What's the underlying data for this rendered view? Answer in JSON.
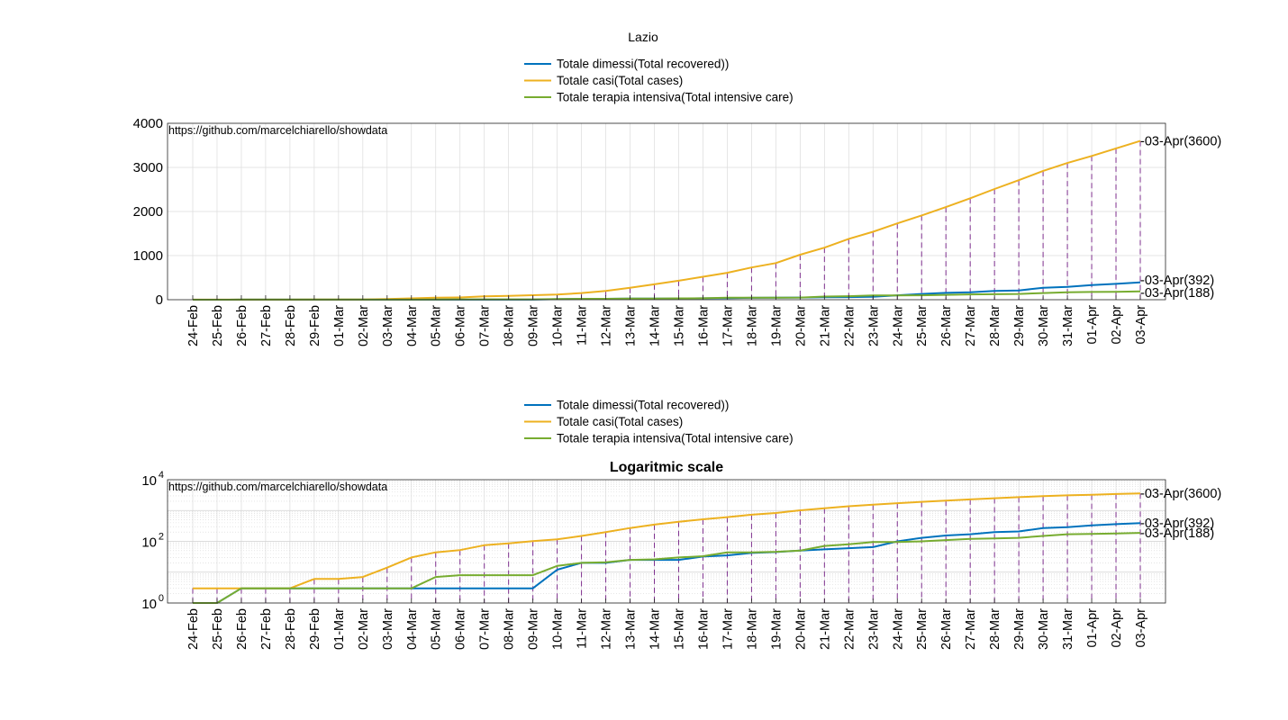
{
  "figure_title": "Lazio",
  "colors": {
    "recovered": "#0072BD",
    "cases": "#EDB120",
    "icu": "#77AC30",
    "drop_lines": "#7E2F8E"
  },
  "chart_data": [
    {
      "type": "line",
      "title": "",
      "watermark": "https://github.com/marcelchiarello/showdata",
      "x": [
        "24-Feb",
        "25-Feb",
        "26-Feb",
        "27-Feb",
        "28-Feb",
        "29-Feb",
        "01-Mar",
        "02-Mar",
        "03-Mar",
        "04-Mar",
        "05-Mar",
        "06-Mar",
        "07-Mar",
        "08-Mar",
        "09-Mar",
        "10-Mar",
        "11-Mar",
        "12-Mar",
        "13-Mar",
        "14-Mar",
        "15-Mar",
        "16-Mar",
        "17-Mar",
        "18-Mar",
        "19-Mar",
        "20-Mar",
        "21-Mar",
        "22-Mar",
        "23-Mar",
        "24-Mar",
        "25-Mar",
        "26-Mar",
        "27-Mar",
        "28-Mar",
        "29-Mar",
        "30-Mar",
        "31-Mar",
        "01-Apr",
        "02-Apr",
        "03-Apr"
      ],
      "yscale": "linear",
      "ylim": [
        0,
        4000
      ],
      "yticks": [
        "0",
        "1000",
        "2000",
        "3000",
        "4000"
      ],
      "grid": true,
      "legend_location": "top-center",
      "series": [
        {
          "name": "Totale dimessi(Total recovered))",
          "color": "#0072BD",
          "values": [
            1,
            1,
            3,
            3,
            3,
            3,
            3,
            3,
            3,
            3,
            3,
            3,
            3,
            3,
            3,
            12,
            20,
            20,
            25,
            25,
            25,
            32,
            35,
            42,
            45,
            50,
            55,
            60,
            65,
            100,
            130,
            155,
            170,
            200,
            210,
            270,
            290,
            330,
            360,
            392
          ]
        },
        {
          "name": "Totale casi(Total cases)",
          "color": "#EDB120",
          "values": [
            3,
            3,
            3,
            3,
            3,
            6,
            6,
            7,
            14,
            30,
            44,
            52,
            75,
            86,
            102,
            116,
            150,
            200,
            270,
            350,
            430,
            520,
            610,
            730,
            830,
            1020,
            1180,
            1380,
            1540,
            1730,
            1910,
            2100,
            2300,
            2510,
            2710,
            2920,
            3100,
            3260,
            3430,
            3600
          ]
        },
        {
          "name": "Totale terapia intensiva(Total intensive care)",
          "color": "#77AC30",
          "values": [
            1,
            1,
            3,
            3,
            3,
            3,
            3,
            3,
            3,
            3,
            7,
            8,
            8,
            8,
            8,
            16,
            20,
            21,
            25,
            26,
            30,
            33,
            44,
            44,
            46,
            50,
            71,
            80,
            95,
            95,
            100,
            110,
            120,
            125,
            130,
            150,
            170,
            175,
            180,
            188
          ]
        }
      ],
      "end_labels": [
        "-03-Apr(3600)",
        "-03-Apr(392)",
        "-03-Apr(188)"
      ]
    },
    {
      "type": "line",
      "title": "Logaritmic scale",
      "watermark": "https://github.com/marcelchiarello/showdata",
      "yscale": "log",
      "ylim": [
        1,
        10000
      ],
      "yticks": [
        {
          "base": "10",
          "exp": "0"
        },
        {
          "base": "10",
          "exp": "2"
        },
        {
          "base": "10",
          "exp": "4"
        }
      ],
      "grid": true,
      "legend_location": "top-center",
      "uses_series_of_chart": 0,
      "end_labels": [
        "-03-Apr(3600)",
        "-03-Apr(392)",
        "-03-Apr(188)"
      ]
    }
  ]
}
